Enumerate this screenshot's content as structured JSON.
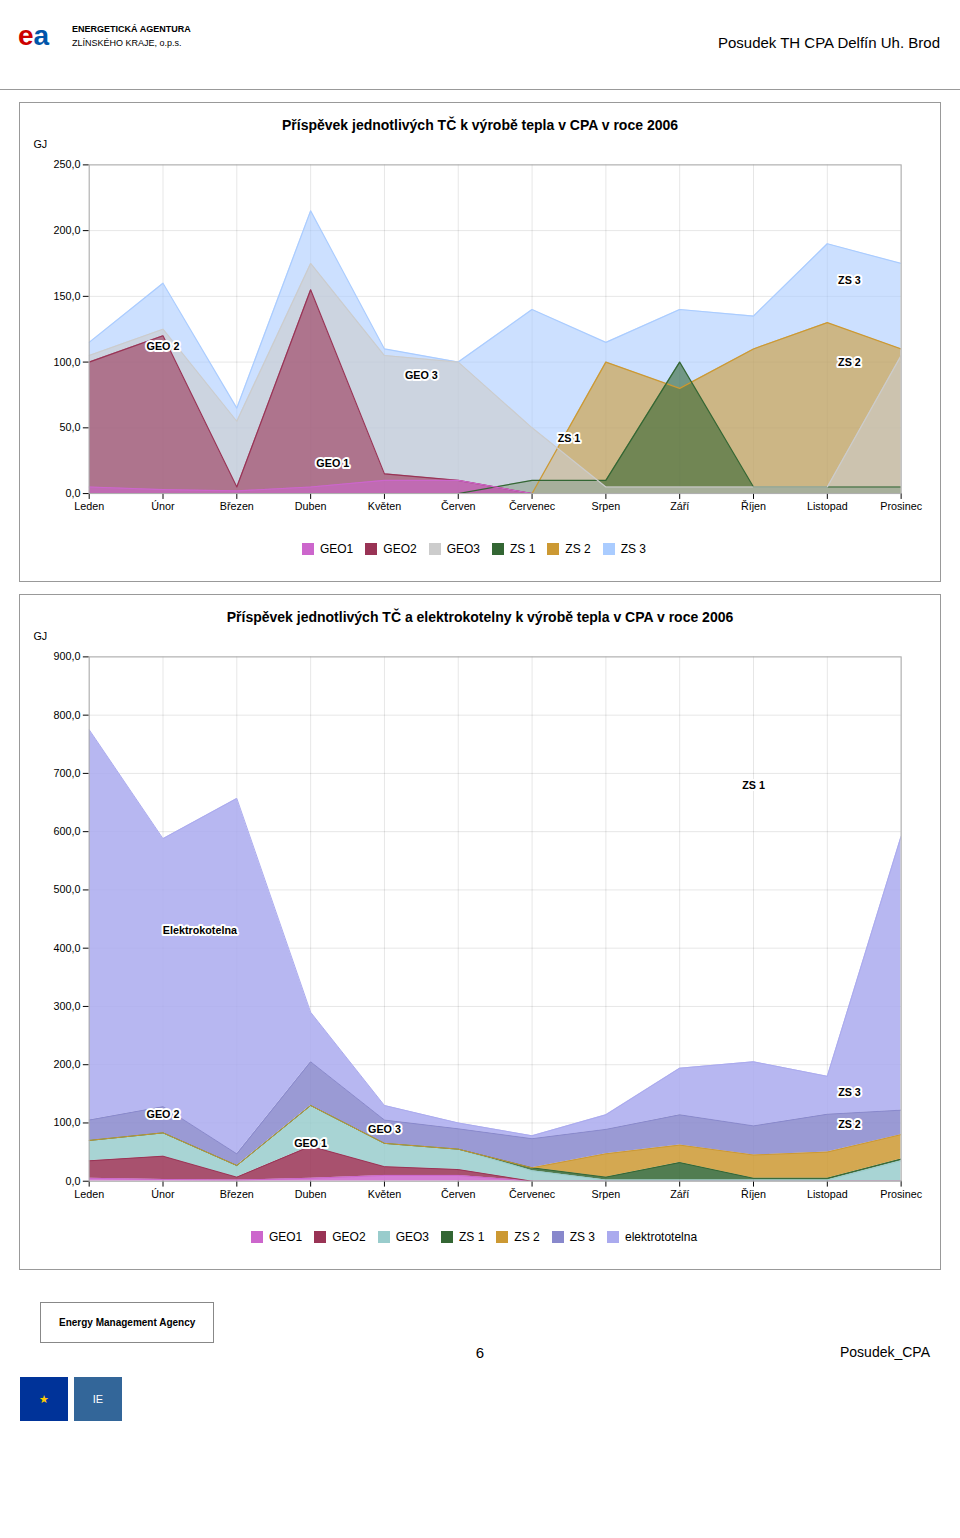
{
  "header": {
    "logo": [
      {
        "text": "e",
        "color": "#cc0000"
      },
      {
        "text": "a",
        "color": "#0055aa"
      }
    ],
    "lines": [
      "ENERGETICKÁ AGENTURA",
      "ZLÍNSKÉHO KRAJE, o.p.s."
    ],
    "right": "Posudek TH CPA Delfín Uh. Brod"
  },
  "chart_data": [
    {
      "type": "area",
      "stacked": false,
      "title": "Příspěvek jednotlivých TČ k výrobě tepla v CPA v roce 2006",
      "ylabel": "GJ",
      "categories": [
        "Leden",
        "Únor",
        "Březen",
        "Duben",
        "Květen",
        "Červen",
        "Červenec",
        "Srpen",
        "Září",
        "Říjen",
        "Listopad",
        "Prosinec"
      ],
      "series": [
        {
          "name": "GEO1",
          "color": "#cc66cc",
          "values": [
            5,
            3,
            2,
            5,
            10,
            10,
            0,
            0,
            0,
            0,
            0,
            0
          ]
        },
        {
          "name": "GEO2",
          "color": "#993355",
          "values": [
            100,
            120,
            5,
            155,
            15,
            10,
            0,
            0,
            0,
            0,
            0,
            0
          ]
        },
        {
          "name": "GEO3",
          "color": "#cccccc",
          "values": [
            105,
            125,
            55,
            175,
            105,
            100,
            50,
            5,
            5,
            5,
            5,
            105
          ]
        },
        {
          "name": "ZS 1",
          "color": "#336633",
          "values": [
            0,
            0,
            0,
            0,
            0,
            0,
            10,
            10,
            100,
            5,
            5,
            5
          ]
        },
        {
          "name": "ZS 2",
          "color": "#cc9933",
          "values": [
            0,
            0,
            0,
            0,
            0,
            0,
            0,
            100,
            80,
            110,
            130,
            110
          ]
        },
        {
          "name": "ZS 3",
          "color": "#aaccff",
          "values": [
            115,
            160,
            65,
            215,
            110,
            100,
            140,
            115,
            140,
            135,
            190,
            175
          ]
        }
      ],
      "ylim": [
        0,
        250
      ],
      "yticks": [
        {
          "value": 0,
          "label": "0,0"
        },
        {
          "value": 50,
          "label": "50,0"
        },
        {
          "value": 100,
          "label": "100,0"
        },
        {
          "value": 150,
          "label": "150,0"
        },
        {
          "value": 200,
          "label": "200,0"
        },
        {
          "value": 250,
          "label": "250,0"
        }
      ],
      "grid": true,
      "legend": "bottom",
      "annotations": [
        "GEO 2",
        "GEO 3",
        "GEO 1",
        "ZS 1",
        "ZS 2",
        "ZS 3"
      ]
    },
    {
      "type": "area",
      "stacked": true,
      "title": "Příspěvek jednotlivých TČ a elektrokotelny k výrobě tepla v CPA v roce 2006",
      "ylabel": "GJ",
      "categories": [
        "Leden",
        "Únor",
        "Březen",
        "Duben",
        "Květen",
        "Červen",
        "Červenec",
        "Srpen",
        "Září",
        "Říjen",
        "Listopad",
        "Prosinec"
      ],
      "series": [
        {
          "name": "GEO1",
          "color": "#cc66cc",
          "values": [
            5,
            3,
            2,
            5,
            10,
            10,
            0,
            0,
            0,
            0,
            0,
            0
          ]
        },
        {
          "name": "GEO2",
          "color": "#993355",
          "values": [
            30,
            40,
            5,
            55,
            15,
            10,
            0,
            0,
            0,
            0,
            0,
            0
          ]
        },
        {
          "name": "GEO3",
          "color": "#99cccc",
          "values": [
            35,
            40,
            20,
            70,
            40,
            35,
            18,
            2,
            2,
            2,
            2,
            35
          ]
        },
        {
          "name": "ZS 1",
          "color": "#336633",
          "values": [
            0,
            0,
            0,
            0,
            0,
            0,
            5,
            5,
            30,
            3,
            3,
            3
          ]
        },
        {
          "name": "ZS 2",
          "color": "#cc9933",
          "values": [
            0,
            0,
            0,
            0,
            0,
            0,
            0,
            40,
            30,
            40,
            45,
            42
          ]
        },
        {
          "name": "ZS 3",
          "color": "#8888cc",
          "values": [
            35,
            45,
            20,
            75,
            40,
            35,
            50,
            42,
            52,
            50,
            65,
            42
          ]
        },
        {
          "name": "elektrototelna",
          "color": "#aaaaee",
          "values": [
            670,
            460,
            610,
            85,
            25,
            10,
            5,
            25,
            80,
            110,
            65,
            470
          ]
        }
      ],
      "ylim": [
        0,
        900
      ],
      "yticks": [
        {
          "value": 0,
          "label": "0,0"
        },
        {
          "value": 100,
          "label": "100,0"
        },
        {
          "value": 200,
          "label": "200,0"
        },
        {
          "value": 300,
          "label": "300,0"
        },
        {
          "value": 400,
          "label": "400,0"
        },
        {
          "value": 500,
          "label": "500,0"
        },
        {
          "value": 600,
          "label": "600,0"
        },
        {
          "value": 700,
          "label": "700,0"
        },
        {
          "value": 800,
          "label": "800,0"
        },
        {
          "value": 900,
          "label": "900,0"
        }
      ],
      "grid": true,
      "legend": "bottom",
      "annotations": [
        "GEO 2",
        "GEO 3",
        "GEO 1",
        "ZS 1",
        "ZS 2",
        "ZS 3",
        "Elektrokotelna"
      ]
    }
  ],
  "footer": {
    "left": "Energy Management Agency",
    "logos": [
      {
        "text": "★",
        "color": "#003399"
      },
      {
        "text": "IE",
        "color": "#336699"
      }
    ],
    "center": "6",
    "right": "Posudek_CPA"
  }
}
